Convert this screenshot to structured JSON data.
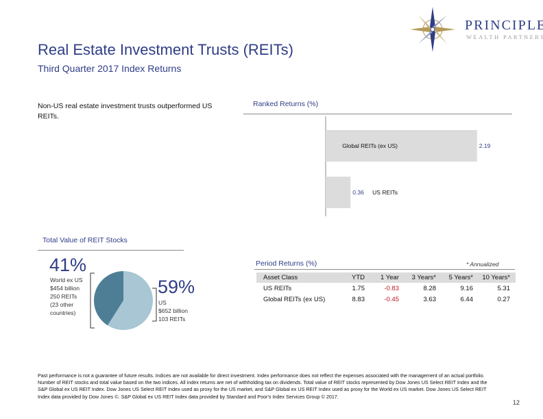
{
  "header": {
    "title": "Real Estate Investment Trusts (REITs)",
    "subtitle": "Third Quarter 2017 Index Returns"
  },
  "logo": {
    "name": "PRINCIPLE",
    "tagline": "WEALTH PARTNERS"
  },
  "intro_text": "Non-US real estate investment trusts outperformed US REITs.",
  "chart_data": [
    {
      "type": "bar",
      "orientation": "horizontal",
      "title": "Ranked Returns (%)",
      "categories": [
        "Global REITs (ex US)",
        "US REITs"
      ],
      "values": [
        2.19,
        0.36
      ],
      "value_labels": [
        "2.19",
        "0.36"
      ],
      "xlim": [
        0,
        2.5
      ],
      "color": "#dcdcdc"
    },
    {
      "type": "pie",
      "title": "Total Value of REIT Stocks",
      "slices": [
        {
          "name": "World ex US",
          "value": 41,
          "pct_label": "41%",
          "details": [
            "World ex US",
            "$454 billion",
            "250 REITs",
            "(23 other",
            "countries)"
          ],
          "color": "#4e7e96"
        },
        {
          "name": "US",
          "value": 59,
          "pct_label": "59%",
          "details": [
            "US",
            "$652 billion",
            "103 REITs"
          ],
          "color": "#a8c6d4"
        }
      ]
    },
    {
      "type": "table",
      "title": "Period Returns (%)",
      "note": "* Annualized",
      "columns": [
        "Asset Class",
        "YTD",
        "1 Year",
        "3 Years*",
        "5 Years*",
        "10 Years*"
      ],
      "rows": [
        {
          "cells": [
            "US REITs",
            "1.75",
            "-0.83",
            "8.28",
            "9.16",
            "5.31"
          ]
        },
        {
          "cells": [
            "Global REITs (ex US)",
            "8.83",
            "-0.45",
            "3.63",
            "6.44",
            "0.27"
          ]
        }
      ],
      "negative_color": "#c0141e"
    }
  ],
  "footer": {
    "disclaimer": "Past performance is not a guarantee of future results. Indices are not available for direct investment. Index performance does not reflect the expenses associated with the management of an actual portfolio. Number of REIT stocks and total value based on the two indices. All index returns are net of withholding tax on dividends. Total value of REIT stocks represented by Dow Jones US Select REIT Index and the S&P Global ex US REIT Index. Dow Jones US Select REIT Index used as proxy for the US market, and S&P Global ex US REIT Index used as proxy for the World ex US market. Dow Jones US Select REIT Index data provided by Dow Jones ©. S&P Global ex US REIT Index data provided by Standard and Poor's Index Services Group © 2017.",
    "page_number": "12"
  }
}
